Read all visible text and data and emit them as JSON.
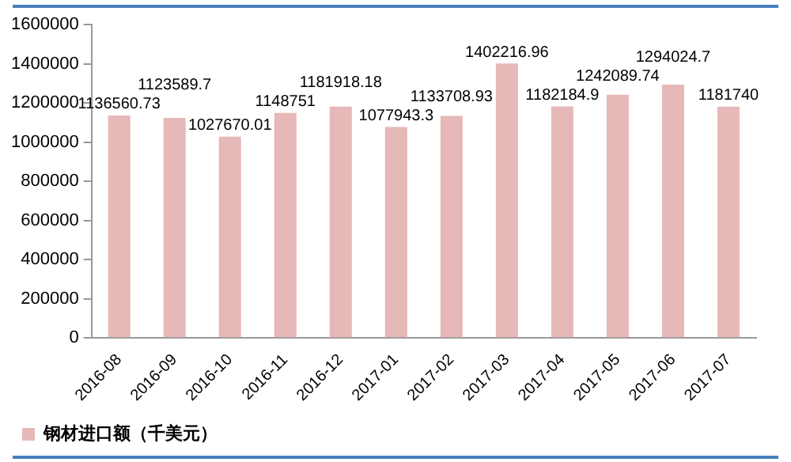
{
  "chart_data": {
    "type": "bar",
    "categories": [
      "2016-08",
      "2016-09",
      "2016-10",
      "2016-11",
      "2016-12",
      "2017-01",
      "2017-02",
      "2017-03",
      "2017-04",
      "2017-05",
      "2017-06",
      "2017-07"
    ],
    "series": [
      {
        "name": "钢材进口额（千美元）",
        "color": "#e6b8b7",
        "values": [
          1136560.73,
          1123589.7,
          1027670.01,
          1148751,
          1181918.18,
          1077943.3,
          1133708.93,
          1402216.96,
          1182184.9,
          1242089.74,
          1294024.7,
          1181740
        ]
      }
    ],
    "ylim": [
      0,
      1600000
    ],
    "yticks": [
      0,
      200000,
      400000,
      600000,
      800000,
      1000000,
      1200000,
      1400000,
      1600000
    ],
    "grid": false,
    "legend": "bottom left",
    "data_labels": true
  }
}
